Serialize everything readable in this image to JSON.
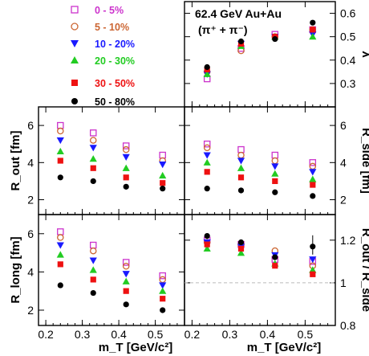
{
  "chart_data": {
    "type": "scatter",
    "title": "62.4 GeV Au+Au",
    "subtitle": "(π⁺ + π⁻)",
    "xlabel": "m_T [GeV/c²]",
    "xlim": [
      0.18,
      0.58
    ],
    "x_ticks": [
      "0.2",
      "0.3",
      "0.4",
      "0.5"
    ],
    "x": [
      0.24,
      0.33,
      0.42,
      0.52
    ],
    "legend": [
      {
        "label": "0 - 5%",
        "color": "#cc33cc",
        "marker": "open-square"
      },
      {
        "label": "5 - 10%",
        "color": "#cc6633",
        "marker": "open-circle"
      },
      {
        "label": "10 - 20%",
        "color": "#1a1aff",
        "marker": "triangle-down"
      },
      {
        "label": "20 - 30%",
        "color": "#22cc22",
        "marker": "triangle-up"
      },
      {
        "label": "30 - 50%",
        "color": "#ee1111",
        "marker": "square"
      },
      {
        "label": "50 - 80%",
        "color": "#000000",
        "marker": "circle"
      }
    ],
    "panels": [
      {
        "id": "lambda",
        "ylabel": "λ",
        "ylim": [
          0.2,
          0.65
        ],
        "y_ticks": [
          "0.3",
          "0.4",
          "0.5",
          "0.6"
        ],
        "series": [
          [
            0.32,
            0.45,
            0.51,
            0.53
          ],
          [
            0.35,
            0.44,
            0.5,
            0.53
          ],
          [
            0.34,
            0.47,
            0.5,
            0.51
          ],
          [
            0.34,
            0.46,
            0.5,
            0.5
          ],
          [
            0.36,
            0.47,
            0.5,
            0.53
          ],
          [
            0.37,
            0.48,
            0.49,
            0.56
          ]
        ]
      },
      {
        "id": "rout",
        "ylabel": "R_out [fm]",
        "ylim": [
          1.2,
          7.0
        ],
        "y_ticks": [
          "2",
          "4",
          "6"
        ],
        "series": [
          [
            6.0,
            5.6,
            4.9,
            4.4
          ],
          [
            5.7,
            5.2,
            4.7,
            4.1
          ],
          [
            5.2,
            4.8,
            4.3,
            3.9
          ],
          [
            4.6,
            4.2,
            3.7,
            3.3
          ],
          [
            4.1,
            3.7,
            3.2,
            2.9
          ],
          [
            3.2,
            3.0,
            2.7,
            2.6
          ]
        ]
      },
      {
        "id": "rside",
        "ylabel": "R_side [fm]",
        "ylim": [
          1.2,
          7.0
        ],
        "y_ticks": [
          "2",
          "4",
          "6"
        ],
        "series": [
          [
            5.0,
            4.7,
            4.4,
            4.0
          ],
          [
            4.8,
            4.4,
            4.1,
            3.8
          ],
          [
            4.4,
            4.1,
            3.8,
            3.5
          ],
          [
            4.0,
            3.7,
            3.4,
            3.1
          ],
          [
            3.5,
            3.2,
            3.0,
            2.8
          ],
          [
            2.6,
            2.5,
            2.4,
            2.2
          ]
        ]
      },
      {
        "id": "rlong",
        "ylabel": "R_long [fm]",
        "ylim": [
          1.2,
          7.0
        ],
        "y_ticks": [
          "2",
          "4",
          "6"
        ],
        "series": [
          [
            6.1,
            5.4,
            4.5,
            3.8
          ],
          [
            5.8,
            5.1,
            4.3,
            3.6
          ],
          [
            5.4,
            4.6,
            3.9,
            3.3
          ],
          [
            4.9,
            4.1,
            3.5,
            3.0
          ],
          [
            4.4,
            3.6,
            3.0,
            2.6
          ],
          [
            3.3,
            2.9,
            2.3,
            2.0
          ]
        ]
      },
      {
        "id": "ratio",
        "ylabel": "R_out / R_side",
        "ylim": [
          0.8,
          1.32
        ],
        "y_ticks": [
          "0.8",
          "1",
          "1.2"
        ],
        "reference_line": 1.0,
        "series": [
          [
            1.2,
            1.18,
            1.11,
            1.1
          ],
          [
            1.19,
            1.18,
            1.15,
            1.08
          ],
          [
            1.19,
            1.17,
            1.13,
            1.11
          ],
          [
            1.16,
            1.14,
            1.09,
            1.06
          ],
          [
            1.18,
            1.16,
            1.08,
            1.04
          ],
          [
            1.22,
            1.19,
            1.12,
            1.17
          ]
        ]
      }
    ]
  }
}
